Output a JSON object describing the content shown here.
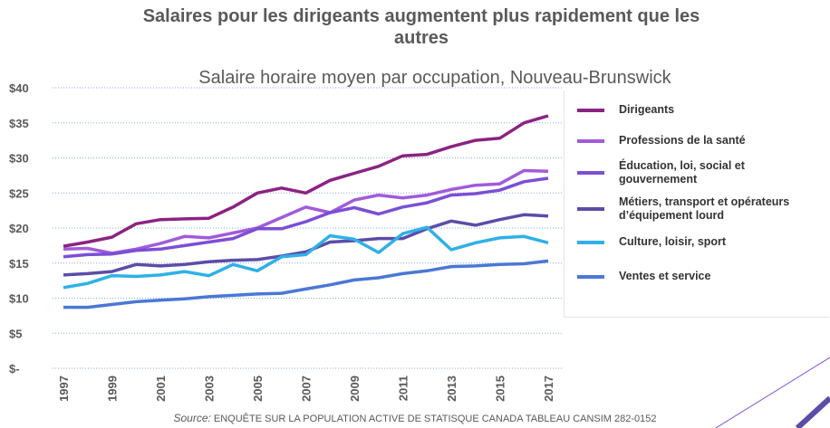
{
  "chart_data": {
    "type": "line",
    "title": "Salaires pour les dirigeants augmentent plus rapidement que les autres",
    "subtitle": "Salaire horaire moyen par occupation, Nouveau-Brunswick",
    "source_label": "Source:",
    "source": "ENQUÊTE SUR LA POPULATION ACTIVE DE STATISQUE CANADA TABLEAU CANSIM 282-0152",
    "categories": [
      "1997",
      null,
      "1999",
      null,
      "2001",
      null,
      "2003",
      null,
      "2005",
      null,
      "2007",
      null,
      "2009",
      null,
      "2011",
      null,
      "2013",
      null,
      "2015",
      null,
      "2017"
    ],
    "ylim": [
      0,
      40
    ],
    "yticks": [
      {
        "value": 0,
        "label": "$-"
      },
      {
        "value": 5,
        "label": "$5"
      },
      {
        "value": 10,
        "label": "$10"
      },
      {
        "value": 15,
        "label": "$15"
      },
      {
        "value": 20,
        "label": "$20"
      },
      {
        "value": 25,
        "label": "$25"
      },
      {
        "value": 30,
        "label": "$30"
      },
      {
        "value": 35,
        "label": "$35"
      },
      {
        "value": 40,
        "label": "$40"
      }
    ],
    "grid": true,
    "legend": "right",
    "series": [
      {
        "name": "Dirigeants",
        "color": "#8b2383",
        "values": [
          17.4,
          18,
          18.7,
          20.6,
          21.2,
          21.3,
          21.4,
          23,
          25,
          25.7,
          25,
          26.8,
          27.8,
          28.8,
          30.3,
          30.5,
          31.6,
          32.5,
          32.8,
          35,
          36
        ]
      },
      {
        "name": "Professions de la santé",
        "color": "#a05bdb",
        "values": [
          17,
          17.1,
          16.4,
          17,
          17.8,
          18.8,
          18.6,
          19.3,
          20,
          21.5,
          23,
          22.2,
          24,
          24.7,
          24.3,
          24.7,
          25.5,
          26.1,
          26.3,
          28.2,
          28.1
        ]
      },
      {
        "name": "Éducation, loi, social et gouvernement",
        "color": "#7b4fd6",
        "values": [
          15.9,
          16.2,
          16.3,
          16.8,
          17,
          17.5,
          18,
          18.5,
          19.9,
          19.9,
          20.9,
          22.2,
          22.9,
          22,
          23,
          23.6,
          24.7,
          24.9,
          25.4,
          26.6,
          27.1
        ]
      },
      {
        "name": "Métiers, transport et opérateurs d’équipement lourd",
        "color": "#5b4da8",
        "values": [
          13.3,
          13.5,
          13.8,
          14.8,
          14.6,
          14.8,
          15.2,
          15.4,
          15.5,
          16,
          16.6,
          18,
          18.2,
          18.5,
          18.5,
          19.9,
          21,
          20.4,
          21.2,
          21.9,
          21.7
        ]
      },
      {
        "name": "Culture, loisir, sport",
        "color": "#2fb0e8",
        "values": [
          11.5,
          12.1,
          13.2,
          13.1,
          13.3,
          13.8,
          13.2,
          14.8,
          13.9,
          15.9,
          16.2,
          18.9,
          18.4,
          16.5,
          19.2,
          20.1,
          16.9,
          17.9,
          18.6,
          18.8,
          17.9
        ]
      },
      {
        "name": "Ventes et service",
        "color": "#4a78d6",
        "values": [
          8.7,
          8.7,
          9.1,
          9.5,
          9.7,
          9.9,
          10.2,
          10.4,
          10.6,
          10.7,
          11.3,
          11.9,
          12.6,
          12.9,
          13.5,
          13.9,
          14.5,
          14.6,
          14.8,
          14.9,
          15.3
        ]
      }
    ]
  }
}
